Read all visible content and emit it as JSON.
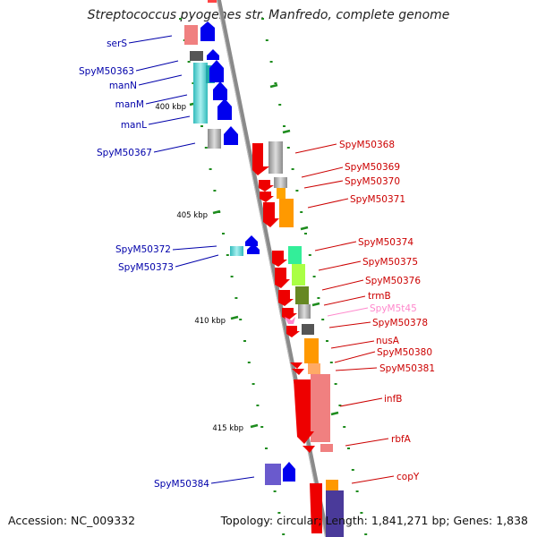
{
  "title": "Streptococcus pyogenes str. Manfredo, complete genome",
  "footer": {
    "accession": "Accession: NC_009332",
    "summary": "Topology: circular; Length: 1,841,271 bp; Genes: 1,838"
  },
  "colors": {
    "backbone": "#8a8a8a",
    "tick": "#1e8c1e",
    "label_forward": "#cc0000",
    "label_reverse": "#0000aa",
    "label_rna": "#ff88cc"
  },
  "scale": {
    "ticks": [
      {
        "label": "400 kbp"
      },
      {
        "label": "405 kbp"
      },
      {
        "label": "410 kbp"
      },
      {
        "label": "415 kbp"
      }
    ]
  },
  "genes_reverse": [
    {
      "label": "serS"
    },
    {
      "label": "SpyM50363"
    },
    {
      "label": "manN"
    },
    {
      "label": "manM"
    },
    {
      "label": "manL"
    },
    {
      "label": "SpyM50367"
    },
    {
      "label": "SpyM50372"
    },
    {
      "label": "SpyM50373"
    },
    {
      "label": "SpyM50384"
    }
  ],
  "genes_forward": [
    {
      "label": "SpyM50368"
    },
    {
      "label": "SpyM50369"
    },
    {
      "label": "SpyM50370"
    },
    {
      "label": "SpyM50371"
    },
    {
      "label": "SpyM50374"
    },
    {
      "label": "SpyM50375"
    },
    {
      "label": "SpyM50376"
    },
    {
      "label": "trmB"
    },
    {
      "label": "SpyM5t45"
    },
    {
      "label": "SpyM50378"
    },
    {
      "label": "nusA"
    },
    {
      "label": "SpyM50380"
    },
    {
      "label": "SpyM50381"
    },
    {
      "label": "infB"
    },
    {
      "label": "rbfA"
    },
    {
      "label": "copY"
    }
  ]
}
